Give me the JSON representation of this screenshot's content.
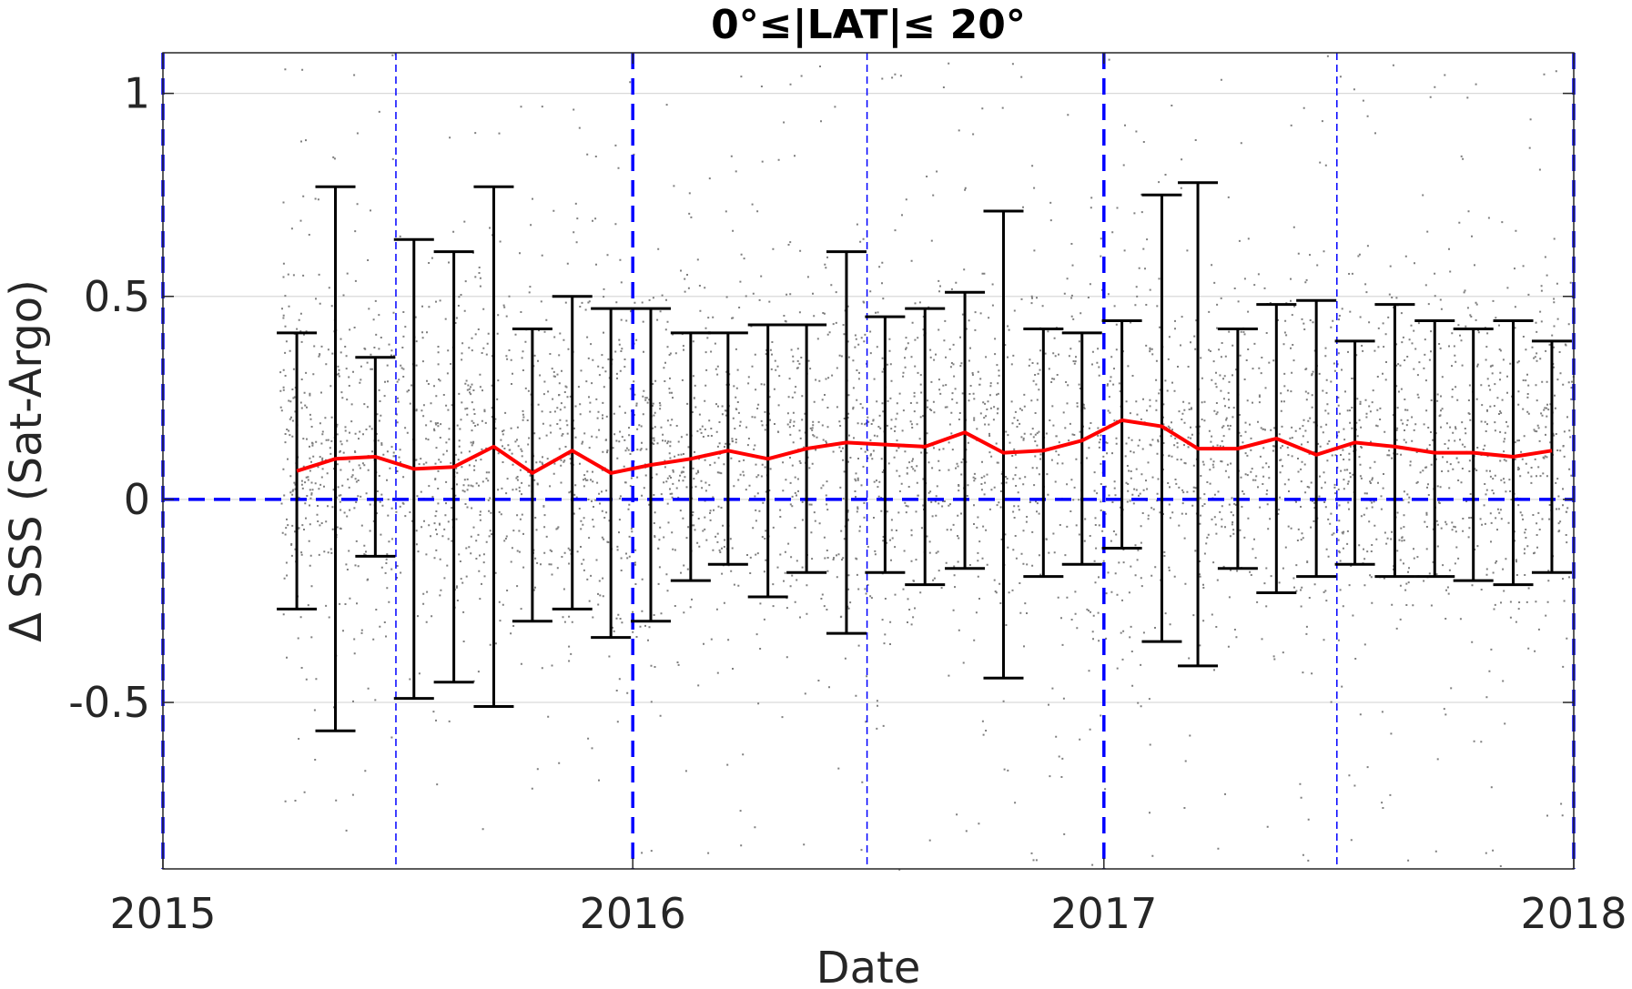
{
  "chart_data": {
    "type": "scatter",
    "title": "0°≤|LAT|≤ 20°",
    "xlabel": "Date",
    "ylabel": "Δ SSS (Sat-Argo)",
    "xlim": [
      "2015-01-01",
      "2018-01-01"
    ],
    "ylim": [
      -0.91,
      1.1
    ],
    "x_ticks": [
      "2015",
      "2016",
      "2017",
      "2018"
    ],
    "y_ticks": [
      {
        "value": 1,
        "label": "1"
      },
      {
        "value": 0.5,
        "label": "0.5"
      },
      {
        "value": 0,
        "label": "0"
      },
      {
        "value": -0.5,
        "label": "-0.5"
      }
    ],
    "grid": true,
    "colors": {
      "scatter": "#7f7f7f",
      "mean_line": "#ff0000",
      "error_bars": "#000000",
      "reference_lines": "#0000ff",
      "grid": "#d9d9d9"
    },
    "scatter_cloud": {
      "x_start": "2015-04-01",
      "x_end": "2018-01-01",
      "center": 0.12,
      "spread": 0.22,
      "description_points": "dense individual Sat-Argo differences"
    },
    "reference_lines": {
      "horizontal_y": 0,
      "vertical_years": [
        "2015-01-01",
        "2016-01-01",
        "2017-01-01",
        "2018-01-01"
      ],
      "vertical_half_years": [
        "2015-07-01",
        "2016-07-01",
        "2017-07-01"
      ]
    },
    "series": [
      {
        "type": "errorbar",
        "x": [
          "2015-04-15",
          "2015-05-15",
          "2015-06-15",
          "2015-07-15",
          "2015-08-15",
          "2015-09-15",
          "2015-10-15",
          "2015-11-15",
          "2015-12-15",
          "2016-01-15",
          "2016-02-15",
          "2016-03-15",
          "2016-04-15",
          "2016-05-15",
          "2016-06-15",
          "2016-07-15",
          "2016-08-15",
          "2016-09-15",
          "2016-10-15",
          "2016-11-15",
          "2016-12-15",
          "2017-01-15",
          "2017-02-15",
          "2017-03-15",
          "2017-04-15",
          "2017-05-15",
          "2017-06-15",
          "2017-07-15",
          "2017-08-15",
          "2017-09-15",
          "2017-10-15",
          "2017-11-15",
          "2017-12-15"
        ],
        "y": [
          0.07,
          0.1,
          0.105,
          0.075,
          0.08,
          0.13,
          0.065,
          0.12,
          0.065,
          0.085,
          0.1,
          0.12,
          0.1,
          0.125,
          0.14,
          0.135,
          0.13,
          0.165,
          0.115,
          0.12,
          0.145,
          0.195,
          0.18,
          0.125,
          0.125,
          0.15,
          0.11,
          0.14,
          0.13,
          0.115,
          0.115,
          0.105,
          0.12
        ],
        "low": [
          -0.27,
          -0.57,
          -0.14,
          -0.49,
          -0.45,
          -0.51,
          -0.3,
          -0.27,
          -0.34,
          -0.3,
          -0.2,
          -0.16,
          -0.24,
          -0.18,
          -0.33,
          -0.18,
          -0.21,
          -0.17,
          -0.44,
          -0.19,
          -0.16,
          -0.12,
          -0.35,
          -0.41,
          -0.17,
          -0.23,
          -0.19,
          -0.16,
          -0.19,
          -0.19,
          -0.2,
          -0.21,
          -0.18
        ],
        "high": [
          0.41,
          0.77,
          0.35,
          0.64,
          0.61,
          0.77,
          0.42,
          0.5,
          0.47,
          0.47,
          0.41,
          0.41,
          0.43,
          0.43,
          0.61,
          0.45,
          0.47,
          0.51,
          0.71,
          0.42,
          0.41,
          0.44,
          0.75,
          0.78,
          0.42,
          0.48,
          0.49,
          0.39,
          0.48,
          0.44,
          0.42,
          0.44,
          0.39
        ]
      }
    ]
  }
}
